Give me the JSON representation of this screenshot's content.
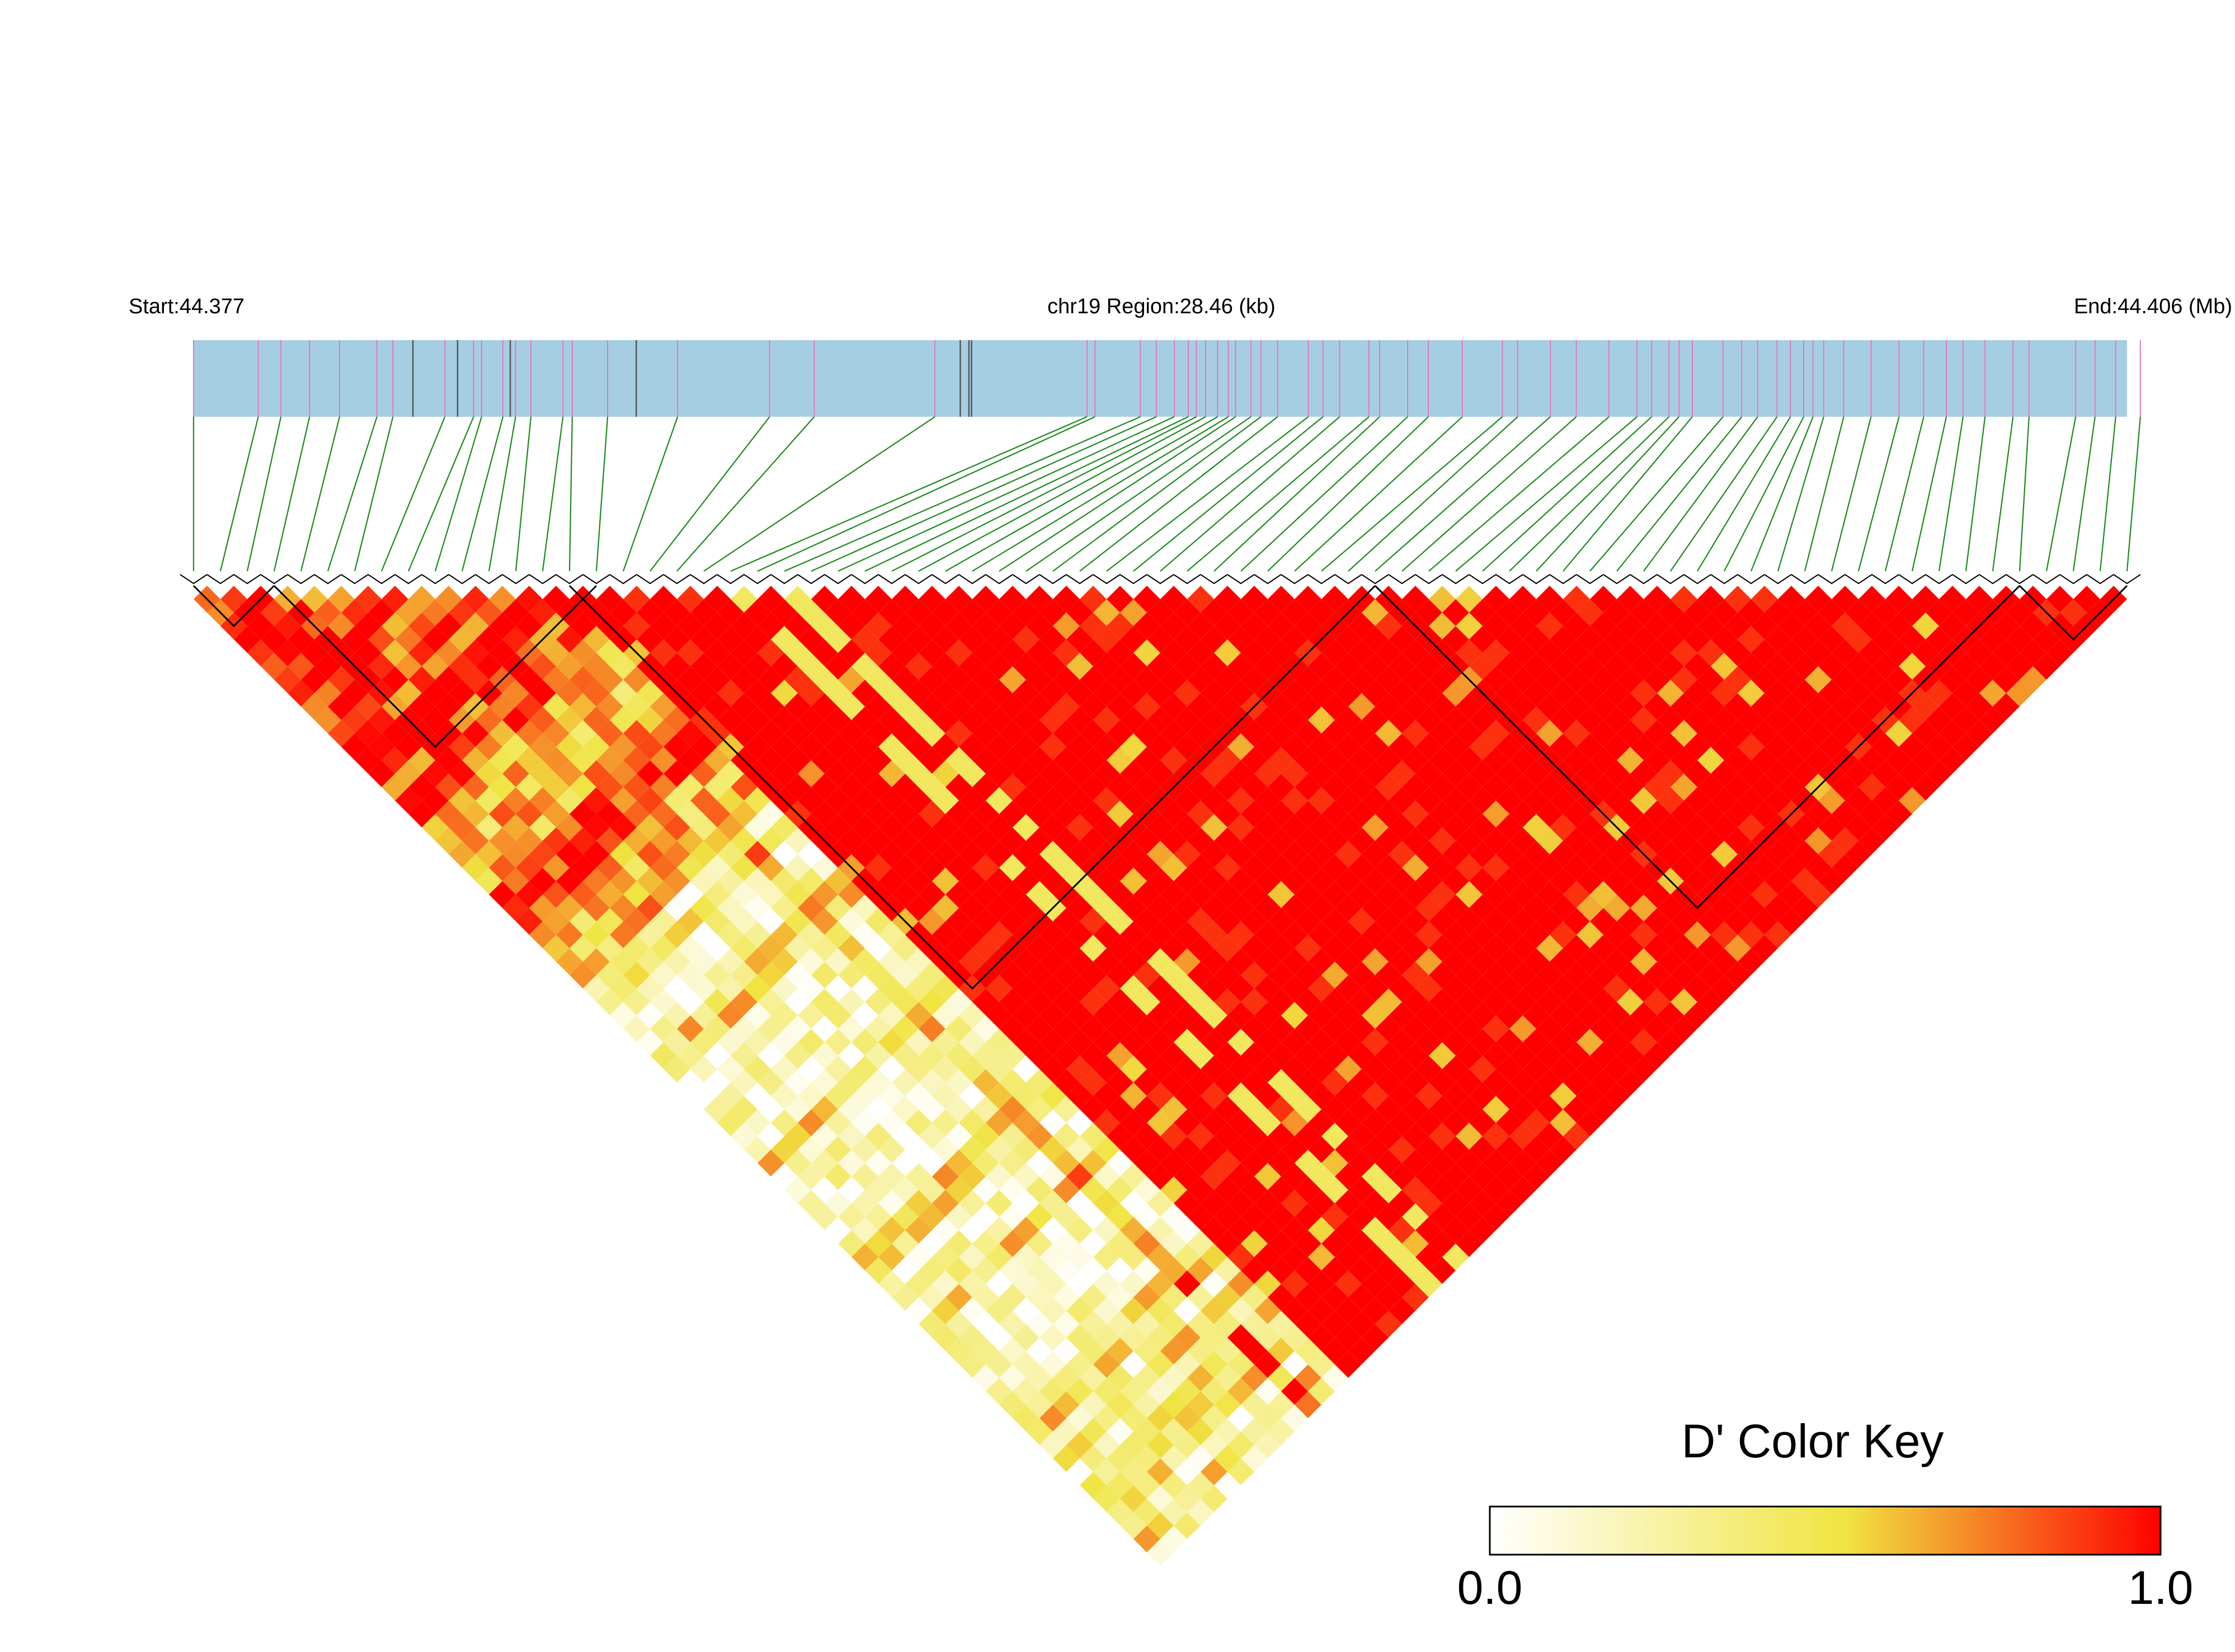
{
  "header": {
    "start_label": "Start:44.377",
    "region_label": "chr19 Region:28.46 (kb)",
    "end_label": "End:44.406 (Mb)"
  },
  "colors": {
    "track": "#a6cee3",
    "variant_tick": "#e377c2",
    "gene_tick": "#555555",
    "connector": "#1a8a1a",
    "ld_low": "#ffffff",
    "ld_mid": "#f0e442",
    "ld_high": "#ff0000",
    "block_outline": "#000000"
  },
  "chart_data": {
    "type": "heatmap",
    "metric": "D'",
    "region": {
      "chromosome": "chr19",
      "start_mb": 44.377,
      "end_mb": 44.406,
      "length_kb": 28.46
    },
    "snp_positions_mb": [
      44.377,
      44.37797,
      44.37831,
      44.37874,
      44.37919,
      44.37975,
      44.37999,
      44.38077,
      44.3812,
      44.38132,
      44.38164,
      44.38183,
      44.38206,
      44.38254,
      44.38268,
      44.38321,
      44.38426,
      44.38564,
      44.38631,
      44.38812,
      44.3904,
      44.39052,
      44.3912,
      44.39144,
      44.39171,
      44.39192,
      44.39204,
      44.39218,
      44.39236,
      44.39252,
      44.39263,
      44.39286,
      44.39301,
      44.39326,
      44.39372,
      44.39394,
      44.39419,
      44.39463,
      44.39479,
      44.39521,
      44.39552,
      44.39603,
      44.39663,
      44.39686,
      44.39735,
      44.39774,
      44.39823,
      44.39865,
      44.39887,
      44.39913,
      44.39928,
      44.39948,
      44.39994,
      44.40022,
      44.40046,
      44.40075,
      44.40095,
      44.40115,
      44.40129,
      44.40145,
      44.40175,
      44.40216,
      44.40258,
      44.40295,
      44.40329,
      44.40354,
      44.40387,
      44.40429,
      44.40453,
      44.40523,
      44.40552,
      44.40583,
      44.4062
    ],
    "gene_positions_mb": [
      44.38029,
      44.38096,
      44.38175,
      44.38364,
      44.3885,
      44.38863,
      44.38867
    ],
    "ld_blocks": [
      [
        0,
        3
      ],
      [
        3,
        15
      ],
      [
        14,
        44
      ],
      [
        44,
        68
      ],
      [
        68,
        72
      ]
    ],
    "legend": {
      "title": "D' Color Key",
      "min_label": "0.0",
      "max_label": "1.0",
      "min": 0.0,
      "max": 1.0
    }
  }
}
